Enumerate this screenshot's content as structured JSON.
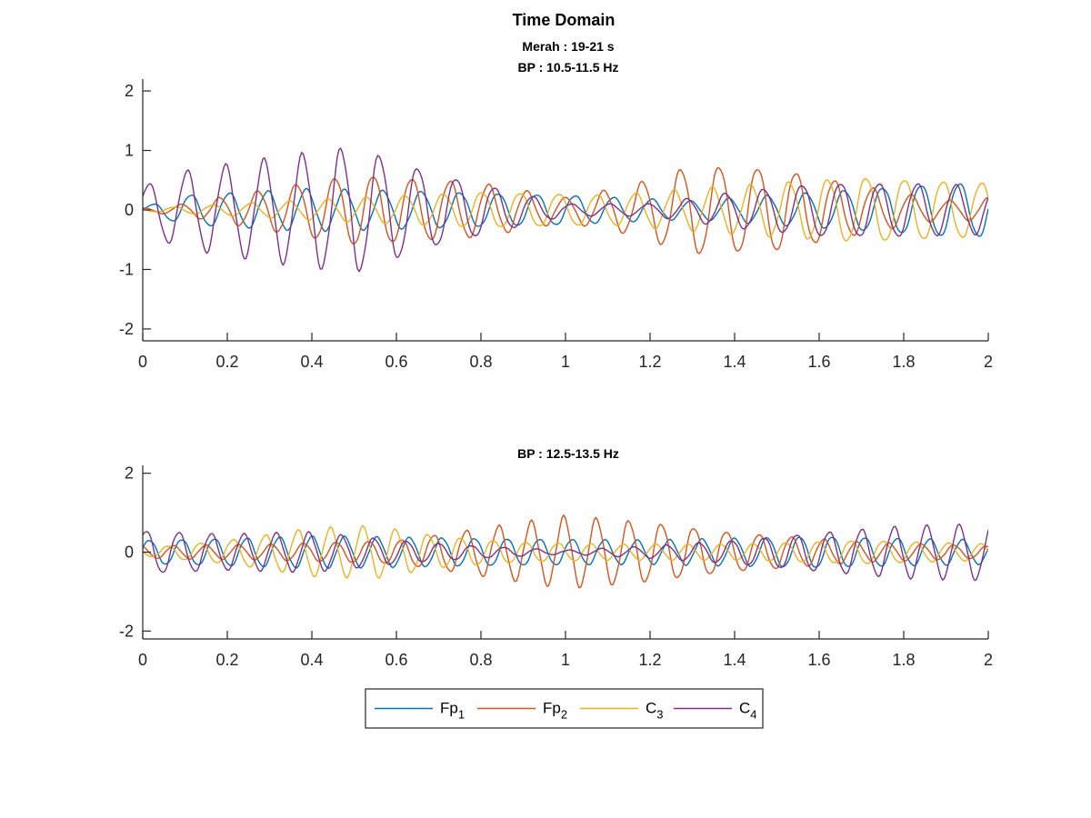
{
  "figure": {
    "title": "Time Domain",
    "legend": {
      "placement": "bottom-center",
      "entries": [
        {
          "base": "Fp",
          "sub": "1",
          "color": "#0072BD"
        },
        {
          "base": "Fp",
          "sub": "2",
          "color": "#D95319"
        },
        {
          "base": "C",
          "sub": "3",
          "color": "#EDB120"
        },
        {
          "base": "C",
          "sub": "4",
          "color": "#7E2F8E"
        }
      ]
    }
  },
  "chart_data": [
    {
      "type": "line",
      "title_lines": [
        "Merah : 19-21 s",
        "BP : 10.5-11.5 Hz"
      ],
      "xlim": [
        0,
        2
      ],
      "ylim": [
        -2.2,
        2.2
      ],
      "xticks": [
        0,
        0.2,
        0.4,
        0.6,
        0.8,
        1,
        1.2,
        1.4,
        1.6,
        1.8,
        2
      ],
      "xtick_labels": [
        "0",
        "0.2",
        "0.4",
        "0.6",
        "0.8",
        "1",
        "1.2",
        "1.4",
        "1.6",
        "1.8",
        "2"
      ],
      "yticks": [
        -2,
        -1,
        0,
        1,
        2
      ],
      "ytick_labels": [
        "-2",
        "-1",
        "0",
        "1",
        "2"
      ],
      "grid": false,
      "series": [
        {
          "name": "Fp1",
          "color": "#0072BD",
          "freq_hz": 11,
          "phase": 0.0,
          "envelope": {
            "t": [
              0,
              0.1,
              0.4,
              0.7,
              1.0,
              1.3,
              1.6,
              1.9,
              2.0
            ],
            "amp": [
              0.05,
              0.25,
              0.35,
              0.3,
              0.25,
              0.15,
              0.3,
              0.45,
              0.45
            ]
          }
        },
        {
          "name": "Fp2",
          "color": "#D95319",
          "freq_hz": 11,
          "phase": 1.6,
          "envelope": {
            "t": [
              0,
              0.1,
              0.3,
              0.5,
              0.8,
              1.0,
              1.15,
              1.3,
              1.5,
              1.7,
              1.9,
              2.0
            ],
            "amp": [
              0.03,
              0.1,
              0.35,
              0.6,
              0.45,
              0.2,
              0.4,
              0.75,
              0.7,
              0.4,
              0.15,
              0.2
            ]
          }
        },
        {
          "name": "C3",
          "color": "#EDB120",
          "freq_hz": 11,
          "phase": 2.7,
          "envelope": {
            "t": [
              0,
              0.15,
              0.5,
              0.8,
              1.1,
              1.4,
              1.7,
              2.0
            ],
            "amp": [
              0.02,
              0.08,
              0.2,
              0.3,
              0.25,
              0.4,
              0.55,
              0.45
            ]
          }
        },
        {
          "name": "C4",
          "color": "#7E2F8E",
          "freq_hz": 11,
          "phase": 0.6,
          "envelope": {
            "t": [
              0,
              0.1,
              0.5,
              0.7,
              0.85,
              1.0,
              1.2,
              1.4,
              1.6,
              1.8,
              2.0
            ],
            "amp": [
              0.4,
              0.65,
              1.05,
              0.6,
              0.35,
              0.1,
              0.1,
              0.3,
              0.45,
              0.45,
              0.4
            ]
          }
        }
      ]
    },
    {
      "type": "line",
      "title_lines": [
        "BP : 12.5-13.5 Hz"
      ],
      "xlim": [
        0,
        2
      ],
      "ylim": [
        -2.2,
        2.2
      ],
      "xticks": [
        0,
        0.2,
        0.4,
        0.6,
        0.8,
        1,
        1.2,
        1.4,
        1.6,
        1.8,
        2
      ],
      "xtick_labels": [
        "0",
        "0.2",
        "0.4",
        "0.6",
        "0.8",
        "1",
        "1.2",
        "1.4",
        "1.6",
        "1.8",
        "2"
      ],
      "yticks": [
        -2,
        0,
        2
      ],
      "ytick_labels": [
        "-2",
        "0",
        "2"
      ],
      "grid": false,
      "series": [
        {
          "name": "Fp1",
          "color": "#0072BD",
          "freq_hz": 13,
          "phase": 0.3,
          "envelope": {
            "t": [
              0,
              0.4,
              0.8,
              1.2,
              1.6,
              2.0
            ],
            "amp": [
              0.3,
              0.4,
              0.35,
              0.3,
              0.4,
              0.3
            ]
          }
        },
        {
          "name": "Fp2",
          "color": "#D95319",
          "freq_hz": 13,
          "phase": 1.9,
          "envelope": {
            "t": [
              0,
              0.3,
              0.6,
              0.8,
              1.0,
              1.2,
              1.4,
              1.7,
              2.0
            ],
            "amp": [
              0.15,
              0.2,
              0.3,
              0.6,
              0.9,
              0.75,
              0.5,
              0.25,
              0.15
            ]
          }
        },
        {
          "name": "C3",
          "color": "#EDB120",
          "freq_hz": 13,
          "phase": 3.0,
          "envelope": {
            "t": [
              0,
              0.2,
              0.4,
              0.55,
              0.7,
              0.9,
              1.1,
              1.4,
              1.7,
              2.0
            ],
            "amp": [
              0.1,
              0.3,
              0.6,
              0.65,
              0.4,
              0.25,
              0.2,
              0.2,
              0.3,
              0.2
            ]
          }
        },
        {
          "name": "C4",
          "color": "#7E2F8E",
          "freq_hz": 13,
          "phase": 0.9,
          "envelope": {
            "t": [
              0,
              0.2,
              0.4,
              0.6,
              0.8,
              1.0,
              1.2,
              1.4,
              1.6,
              1.8,
              2.0
            ],
            "amp": [
              0.55,
              0.45,
              0.5,
              0.3,
              0.15,
              0.05,
              0.15,
              0.3,
              0.5,
              0.65,
              0.7
            ]
          }
        }
      ]
    }
  ]
}
